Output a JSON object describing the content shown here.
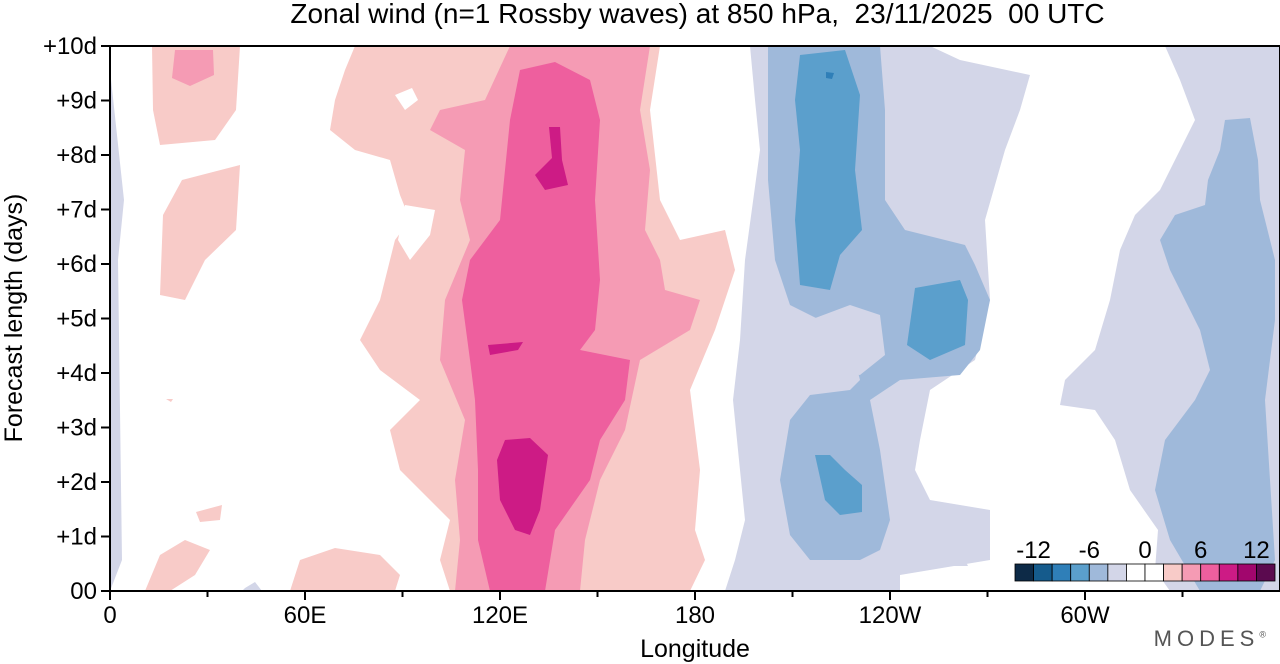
{
  "chart_data": {
    "type": "heatmap",
    "title": "Zonal wind (n=1 Rossby waves) at 850 hPa,  23/11/2025  00 UTC",
    "xlabel": "Longitude",
    "ylabel": "Forecast length (days)",
    "x_ticks": [
      "0",
      "60E",
      "120E",
      "180",
      "120W",
      "60W"
    ],
    "x_tick_values": [
      0,
      60,
      120,
      180,
      240,
      300
    ],
    "xlim": [
      0,
      360
    ],
    "y_ticks": [
      "00",
      "+1d",
      "+2d",
      "+3d",
      "+4d",
      "+5d",
      "+6d",
      "+7d",
      "+8d",
      "+9d",
      "+10d"
    ],
    "y_tick_values": [
      0,
      1,
      2,
      3,
      4,
      5,
      6,
      7,
      8,
      9,
      10
    ],
    "ylim": [
      0,
      10
    ],
    "colorbar": {
      "labels": [
        "-12",
        "-6",
        "0",
        "6",
        "12"
      ],
      "levels": [
        -14,
        -12,
        -10,
        -8,
        -6,
        -4,
        -2,
        0,
        2,
        4,
        6,
        8,
        10,
        12,
        14
      ],
      "colors": [
        "#0d2a47",
        "#155b8c",
        "#2f7fb8",
        "#5b9fcc",
        "#9fb9da",
        "#d3d6e8",
        "#ffffff",
        "#ffffff",
        "#f8cbc8",
        "#f59bb4",
        "#ee5f9e",
        "#cd1b85",
        "#a1066d",
        "#5b0a4f"
      ]
    },
    "features": [
      {
        "kind": "positive",
        "level": 2,
        "lon": [
          95,
          185
        ],
        "days": [
          0,
          10
        ],
        "note": "broad positive band"
      },
      {
        "kind": "positive",
        "level": 6,
        "lon": [
          110,
          155
        ],
        "days": [
          0,
          10
        ]
      },
      {
        "kind": "positive",
        "level": 8,
        "lon": [
          115,
          140
        ],
        "days": [
          0.5,
          9.5
        ]
      },
      {
        "kind": "positive",
        "level": 10,
        "lon": [
          120,
          132
        ],
        "days": [
          1.0,
          2.6
        ]
      },
      {
        "kind": "negative",
        "level": -2,
        "lon": [
          190,
          270
        ],
        "days": [
          0,
          10
        ]
      },
      {
        "kind": "negative",
        "level": -4,
        "lon": [
          200,
          265
        ],
        "days": [
          0.5,
          10
        ]
      },
      {
        "kind": "negative",
        "level": -6,
        "lon": [
          210,
          232
        ],
        "days": [
          5.5,
          9.8
        ]
      },
      {
        "kind": "negative",
        "level": -2,
        "lon": [
          290,
          360
        ],
        "days": [
          0,
          10
        ]
      },
      {
        "kind": "negative",
        "level": -4,
        "lon": [
          320,
          355
        ],
        "days": [
          0.3,
          8.8
        ]
      }
    ]
  },
  "logo": {
    "text": "MODES"
  }
}
